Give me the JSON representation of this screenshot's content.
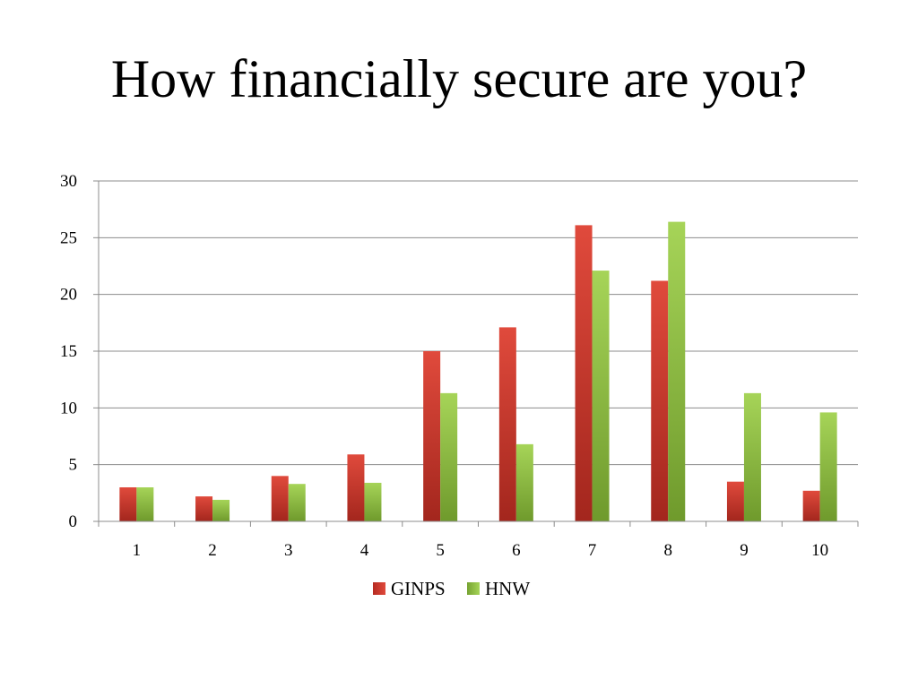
{
  "slide": {
    "title": "How financially secure are you?"
  },
  "chart_data": {
    "type": "bar",
    "title": "",
    "xlabel": "",
    "ylabel": "",
    "categories": [
      "1",
      "2",
      "3",
      "4",
      "5",
      "6",
      "7",
      "8",
      "9",
      "10"
    ],
    "series": [
      {
        "name": "GINPS",
        "color": "#c0392b",
        "values": [
          3,
          2.2,
          4,
          5.9,
          15,
          17.1,
          26.1,
          21.2,
          3.5,
          2.7
        ]
      },
      {
        "name": "HNW",
        "color": "#8dc63f",
        "values": [
          3,
          1.9,
          3.3,
          3.4,
          11.3,
          6.8,
          22.1,
          26.4,
          11.3,
          9.6
        ]
      }
    ],
    "ylim": [
      0,
      30
    ],
    "yticks": [
      "0",
      "5",
      "10",
      "15",
      "20",
      "25",
      "30"
    ],
    "grid": true,
    "legend": "bottom"
  }
}
